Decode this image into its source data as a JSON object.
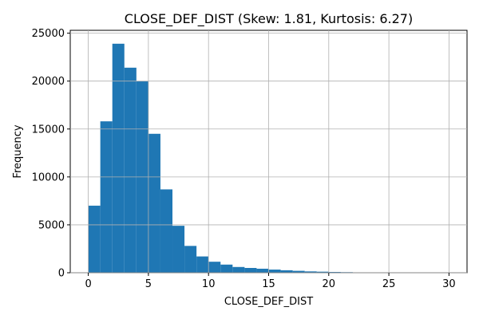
{
  "chart_data": {
    "type": "bar",
    "title": "CLOSE_DEF_DIST (Skew: 1.81, Kurtosis: 6.27)",
    "xlabel": "CLOSE_DEF_DIST",
    "ylabel": "Frequency",
    "xlim": [
      -1.5,
      31.5
    ],
    "ylim": [
      0,
      25300
    ],
    "grid": true,
    "bar_color": "#1f77b4",
    "bin_width": 1.0,
    "bins": [
      {
        "x0": 0.0,
        "x1": 1.0,
        "value": 7000
      },
      {
        "x0": 1.0,
        "x1": 2.0,
        "value": 15800
      },
      {
        "x0": 2.0,
        "x1": 3.0,
        "value": 23900
      },
      {
        "x0": 3.0,
        "x1": 4.0,
        "value": 21400
      },
      {
        "x0": 4.0,
        "x1": 5.0,
        "value": 20000
      },
      {
        "x0": 5.0,
        "x1": 6.0,
        "value": 14500
      },
      {
        "x0": 6.0,
        "x1": 7.0,
        "value": 8700
      },
      {
        "x0": 7.0,
        "x1": 8.0,
        "value": 4900
      },
      {
        "x0": 8.0,
        "x1": 9.0,
        "value": 2800
      },
      {
        "x0": 9.0,
        "x1": 10.0,
        "value": 1700
      },
      {
        "x0": 10.0,
        "x1": 11.0,
        "value": 1150
      },
      {
        "x0": 11.0,
        "x1": 12.0,
        "value": 850
      },
      {
        "x0": 12.0,
        "x1": 13.0,
        "value": 600
      },
      {
        "x0": 13.0,
        "x1": 14.0,
        "value": 500
      },
      {
        "x0": 14.0,
        "x1": 15.0,
        "value": 420
      },
      {
        "x0": 15.0,
        "x1": 16.0,
        "value": 330
      },
      {
        "x0": 16.0,
        "x1": 17.0,
        "value": 260
      },
      {
        "x0": 17.0,
        "x1": 18.0,
        "value": 200
      },
      {
        "x0": 18.0,
        "x1": 19.0,
        "value": 140
      },
      {
        "x0": 19.0,
        "x1": 20.0,
        "value": 110
      },
      {
        "x0": 20.0,
        "x1": 21.0,
        "value": 80
      },
      {
        "x0": 21.0,
        "x1": 22.0,
        "value": 60
      },
      {
        "x0": 22.0,
        "x1": 23.0,
        "value": 40
      },
      {
        "x0": 23.0,
        "x1": 24.0,
        "value": 30
      },
      {
        "x0": 24.0,
        "x1": 25.0,
        "value": 20
      },
      {
        "x0": 25.0,
        "x1": 26.0,
        "value": 15
      },
      {
        "x0": 26.0,
        "x1": 27.0,
        "value": 10
      },
      {
        "x0": 27.0,
        "x1": 28.0,
        "value": 8
      },
      {
        "x0": 28.0,
        "x1": 29.0,
        "value": 5
      },
      {
        "x0": 29.0,
        "x1": 30.0,
        "value": 3
      }
    ],
    "xticks": [
      0,
      5,
      10,
      15,
      20,
      25,
      30
    ],
    "yticks": [
      0,
      5000,
      10000,
      15000,
      20000,
      25000
    ]
  }
}
